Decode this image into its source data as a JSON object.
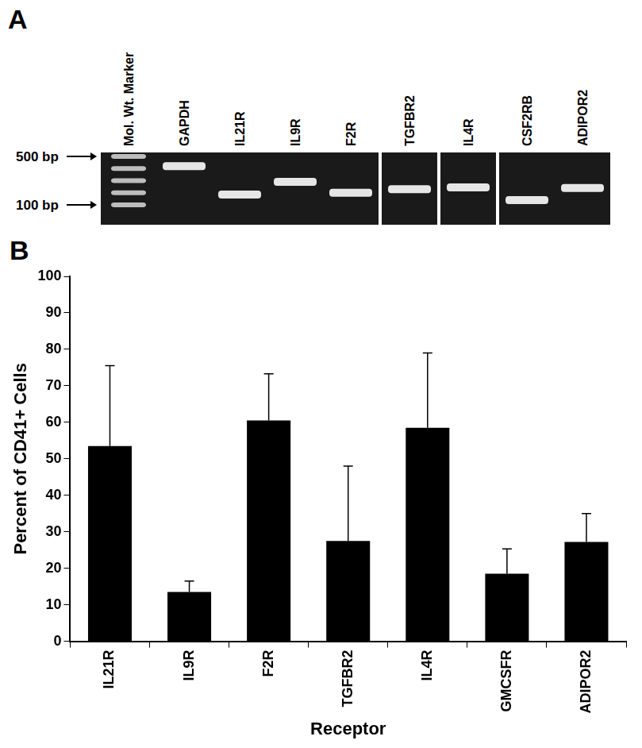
{
  "panel_a": {
    "label": "A",
    "markers": [
      {
        "bp": 500,
        "label": "500 bp"
      },
      {
        "bp": 100,
        "label": "100 bp"
      }
    ],
    "pieces": [
      [
        {
          "label": "Mol. Wt. Marker",
          "bands_bp": [
            500,
            400,
            300,
            200,
            100
          ]
        },
        {
          "label": "GAPDH",
          "bands_bp": [
            420
          ]
        },
        {
          "label": "IL21R",
          "bands_bp": [
            185
          ]
        },
        {
          "label": "IL9R",
          "bands_bp": [
            290
          ]
        },
        {
          "label": "F2R",
          "bands_bp": [
            200
          ]
        }
      ],
      [
        {
          "label": "TGFBR2",
          "bands_bp": [
            230
          ]
        }
      ],
      [
        {
          "label": "IL4R",
          "bands_bp": [
            245
          ]
        }
      ],
      [
        {
          "label": "CSF2RB",
          "bands_bp": [
            140
          ]
        },
        {
          "label": "ADIPOR2",
          "bands_bp": [
            240
          ]
        }
      ]
    ]
  },
  "panel_b_label": "B",
  "chart_data": {
    "type": "bar",
    "categories": [
      "IL21R",
      "IL9R",
      "F2R",
      "TGFBR2",
      "IL4R",
      "GMCSFR",
      "ADIPOR2"
    ],
    "values": [
      53.5,
      13.5,
      60.5,
      27.5,
      58.5,
      18.5,
      27.2
    ],
    "errors": [
      22,
      3,
      12.8,
      20.5,
      20.5,
      6.8,
      7.8
    ],
    "color": "#000000",
    "x_label": "Receptor",
    "y_label": "Percent of CD41+ Cells",
    "ylim": [
      0,
      100
    ],
    "yticks": [
      0,
      10,
      20,
      30,
      40,
      50,
      60,
      70,
      80,
      90,
      100
    ],
    "grid": false
  }
}
